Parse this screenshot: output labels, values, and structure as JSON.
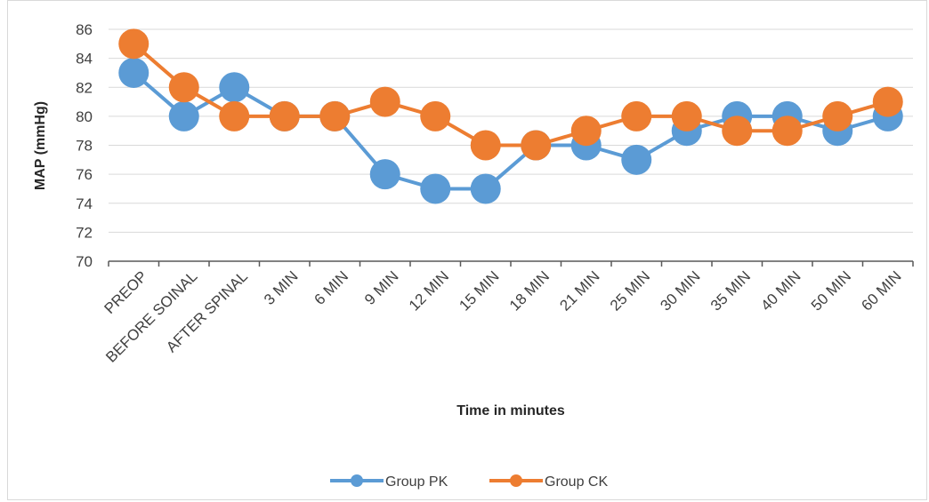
{
  "chart_data": {
    "type": "line",
    "title": "",
    "xlabel": "Time in minutes",
    "ylabel": "MAP (mmHg)",
    "ylim": [
      70,
      86
    ],
    "yticks": [
      70,
      72,
      74,
      76,
      78,
      80,
      82,
      84,
      86
    ],
    "grid": true,
    "legend": "bottom",
    "categories": [
      "PREOP",
      "BEFORE SOINAL",
      "AFTER SPINAL",
      "3 MIN",
      "6 MIN",
      "9 MIN",
      "12 MIN",
      "15 MIN",
      "18 MIN",
      "21 MIN",
      "25 MIN",
      "30 MIN",
      "35 MIN",
      "40 MIN",
      "50 MIN",
      "60 MIN"
    ],
    "series": [
      {
        "name": "Group PK",
        "color": "#5b9bd5",
        "values": [
          83,
          80,
          82,
          80,
          80,
          76,
          75,
          75,
          78,
          78,
          77,
          79,
          80,
          80,
          79,
          80
        ]
      },
      {
        "name": "Group CK",
        "color": "#ed7d31",
        "values": [
          85,
          82,
          80,
          80,
          80,
          81,
          80,
          78,
          78,
          79,
          80,
          80,
          79,
          79,
          80,
          81
        ]
      }
    ]
  }
}
